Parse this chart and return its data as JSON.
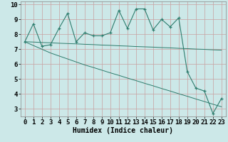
{
  "xlabel": "Humidex (Indice chaleur)",
  "background_color": "#cce8e8",
  "line_color": "#2e7d6e",
  "x": [
    0,
    1,
    2,
    3,
    4,
    5,
    6,
    7,
    8,
    9,
    10,
    11,
    12,
    13,
    14,
    15,
    16,
    17,
    18,
    19,
    20,
    21,
    22,
    23
  ],
  "y_main": [
    7.5,
    8.7,
    7.2,
    7.3,
    8.4,
    9.4,
    7.5,
    8.1,
    7.9,
    7.9,
    8.1,
    9.6,
    8.4,
    9.7,
    9.7,
    8.3,
    9.0,
    8.5,
    9.1,
    5.5,
    4.4,
    4.2,
    2.7,
    3.7
  ],
  "y_trend1": [
    7.5,
    7.48,
    7.45,
    7.43,
    7.4,
    7.38,
    7.36,
    7.33,
    7.31,
    7.28,
    7.26,
    7.23,
    7.21,
    7.18,
    7.16,
    7.14,
    7.11,
    7.09,
    7.06,
    7.04,
    7.01,
    6.99,
    6.96,
    6.94
  ],
  "y_trend2": [
    7.5,
    7.25,
    7.0,
    6.75,
    6.55,
    6.35,
    6.15,
    5.95,
    5.78,
    5.6,
    5.42,
    5.25,
    5.07,
    4.9,
    4.72,
    4.55,
    4.37,
    4.2,
    4.02,
    3.85,
    3.67,
    3.5,
    3.32,
    3.15
  ],
  "ylim": [
    2.5,
    10.2
  ],
  "xlim": [
    -0.5,
    23.5
  ],
  "yticks": [
    3,
    4,
    5,
    6,
    7,
    8,
    9,
    10
  ],
  "xticks": [
    0,
    1,
    2,
    3,
    4,
    5,
    6,
    7,
    8,
    9,
    10,
    11,
    12,
    13,
    14,
    15,
    16,
    17,
    18,
    19,
    20,
    21,
    22,
    23
  ],
  "grid_color": "#c8a0a0",
  "xlabel_fontsize": 7,
  "tick_fontsize": 6.5
}
